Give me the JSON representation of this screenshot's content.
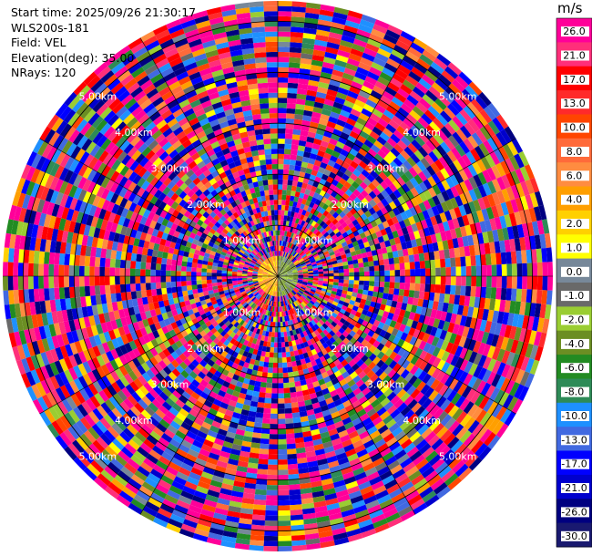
{
  "header": {
    "start_time": "Start time: 2025/09/26 21:30:17",
    "instrument": "WLS200s-181",
    "field": "Field: VEL",
    "elevation": "Elevation(deg): 35.00",
    "nrays": "NRays: 120"
  },
  "colorbar": {
    "unit": "m/s",
    "ticks": [
      "26.0",
      "21.0",
      "17.0",
      "13.0",
      "10.0",
      "8.0",
      "6.0",
      "4.0",
      "2.0",
      "1.0",
      "0.0",
      "-1.0",
      "-2.0",
      "-4.0",
      "-6.0",
      "-8.0",
      "-10.0",
      "-13.0",
      "-17.0",
      "-21.0",
      "-26.0",
      "-30.0"
    ],
    "colors": [
      "#ff0099",
      "#ff2f7a",
      "#ff0000",
      "#ff2a2a",
      "#ff4500",
      "#ff6a3a",
      "#ff8c40",
      "#ff9f00",
      "#ffd000",
      "#ffff00",
      "#778899",
      "#696969",
      "#9acd32",
      "#6b8e23",
      "#228b22",
      "#2e8b57",
      "#1e90ff",
      "#4169e1",
      "#0000ff",
      "#0000cd",
      "#000080",
      "#191970"
    ]
  },
  "chart_data": {
    "type": "heatmap",
    "projection": "polar PPI",
    "field": "VEL",
    "units": "m/s",
    "nrays": 120,
    "range_rings_km": [
      1,
      2,
      3,
      4,
      5
    ],
    "range_ring_labels": [
      "1.00km",
      "2.00km",
      "3.00km",
      "4.00km",
      "5.00km"
    ],
    "max_range_km": 5.4,
    "value_range": [
      -30,
      30
    ],
    "near_field": {
      "inner_km": 0.4,
      "north_west_sector_m_s": [
        0,
        6
      ],
      "south_east_sector_m_s": [
        -6,
        0
      ]
    },
    "far_field": "noise spanning full scale -30 to 30 m/s"
  }
}
